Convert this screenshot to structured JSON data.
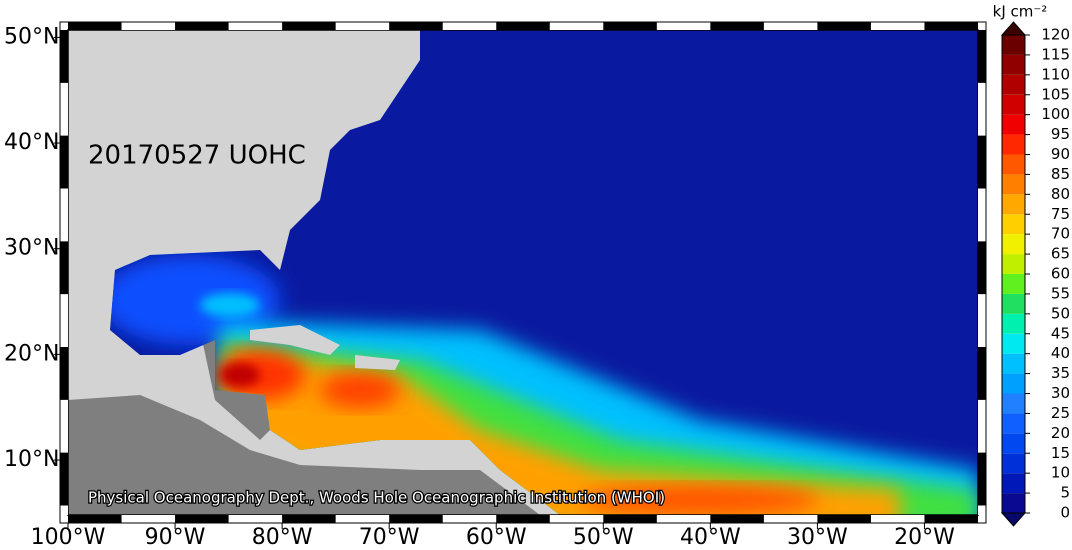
{
  "map": {
    "title": "20170527 UOHC",
    "credit": "Physical Oceanography Dept., Woods Hole Oceanographic Institution (WHOI)",
    "xlim": [
      -100,
      -15
    ],
    "ylim": [
      4.8,
      50.7
    ],
    "xticks": [
      {
        "value": -100,
        "label": "100°W"
      },
      {
        "value": -90,
        "label": "90°W"
      },
      {
        "value": -80,
        "label": "80°W"
      },
      {
        "value": -70,
        "label": "70°W"
      },
      {
        "value": -60,
        "label": "60°W"
      },
      {
        "value": -50,
        "label": "50°W"
      },
      {
        "value": -40,
        "label": "40°W"
      },
      {
        "value": -30,
        "label": "30°W"
      },
      {
        "value": -20,
        "label": "20°W"
      }
    ],
    "yticks": [
      {
        "value": 10,
        "label": "10°N"
      },
      {
        "value": 20,
        "label": "20°N"
      },
      {
        "value": 30,
        "label": "30°N"
      },
      {
        "value": 40,
        "label": "40°N"
      },
      {
        "value": 50,
        "label": "50°N"
      }
    ],
    "colorbar": {
      "unit": "kJ cm⁻²",
      "lim": [
        0,
        120
      ],
      "ticks": [
        0,
        5,
        10,
        15,
        20,
        25,
        30,
        35,
        40,
        45,
        50,
        55,
        60,
        65,
        70,
        75,
        80,
        85,
        90,
        95,
        100,
        105,
        110,
        115,
        120
      ],
      "colors": [
        "#0a0a90",
        "#0018b8",
        "#0030d8",
        "#0048f0",
        "#1060ff",
        "#2080ff",
        "#00a0ff",
        "#00c0ff",
        "#00e8f0",
        "#00f0b0",
        "#20e060",
        "#60f020",
        "#c0f000",
        "#f0f000",
        "#ffd000",
        "#ffa800",
        "#ff8000",
        "#ff5800",
        "#ff2800",
        "#f00000",
        "#d00000",
        "#b00000",
        "#900000",
        "#6a0000"
      ]
    }
  }
}
